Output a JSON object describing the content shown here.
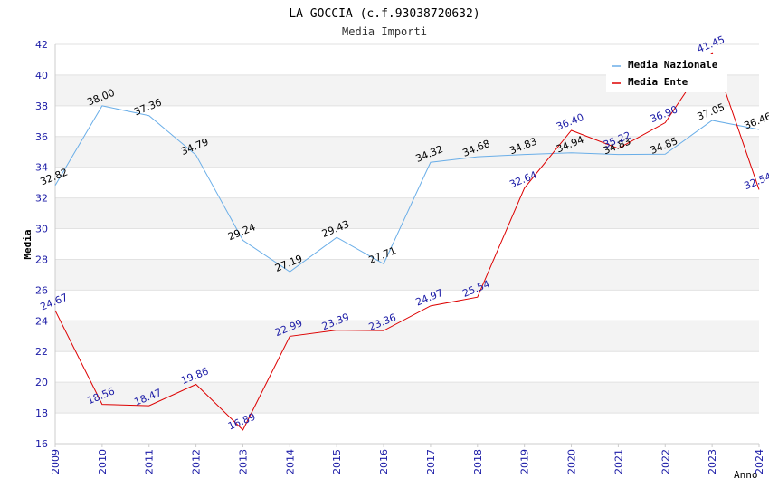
{
  "chart_data": {
    "type": "line",
    "title": "LA GOCCIA (c.f.93038720632)",
    "subtitle": "Media Importi",
    "ylabel": "Media",
    "xlabel": "Anno",
    "ylim": [
      16,
      42
    ],
    "yticks": [
      16,
      18,
      20,
      22,
      24,
      26,
      28,
      30,
      32,
      34,
      36,
      38,
      40,
      42
    ],
    "x": [
      "2009",
      "2010",
      "2011",
      "2012",
      "2013",
      "2014",
      "2015",
      "2016",
      "2017",
      "2018",
      "2019",
      "2020",
      "2021",
      "2022",
      "2023",
      "2024"
    ],
    "grid": "horizontal-bands",
    "legend_position": "top-right",
    "series": [
      {
        "name": "Media Nazionale",
        "color": "#6aaee8",
        "label_color": "#000000",
        "values": [
          32.82,
          38.0,
          37.36,
          34.79,
          29.24,
          27.19,
          29.43,
          27.71,
          34.32,
          34.68,
          34.83,
          34.94,
          34.83,
          34.85,
          37.05,
          36.46
        ],
        "labels": [
          "32.82",
          "38.00",
          "37.36",
          "34.79",
          "29.24",
          "27.19",
          "29.43",
          "27.71",
          "34.32",
          "34.68",
          "34.83",
          "34.94",
          "34.83",
          "34.85",
          "37.05",
          "36.46"
        ]
      },
      {
        "name": "Media Ente",
        "color": "#dd0000",
        "label_color": "#1a1aa6",
        "values": [
          24.67,
          18.56,
          18.47,
          19.86,
          16.89,
          22.99,
          23.39,
          23.36,
          24.97,
          25.54,
          32.64,
          36.4,
          35.22,
          36.9,
          41.45,
          32.54
        ],
        "labels": [
          "24.67",
          "18.56",
          "18.47",
          "19.86",
          "16.89",
          "22.99",
          "23.39",
          "23.36",
          "24.97",
          "25.54",
          "32.64",
          "36.40",
          "35.22",
          "36.90",
          "41.45",
          "32.54"
        ]
      }
    ]
  }
}
